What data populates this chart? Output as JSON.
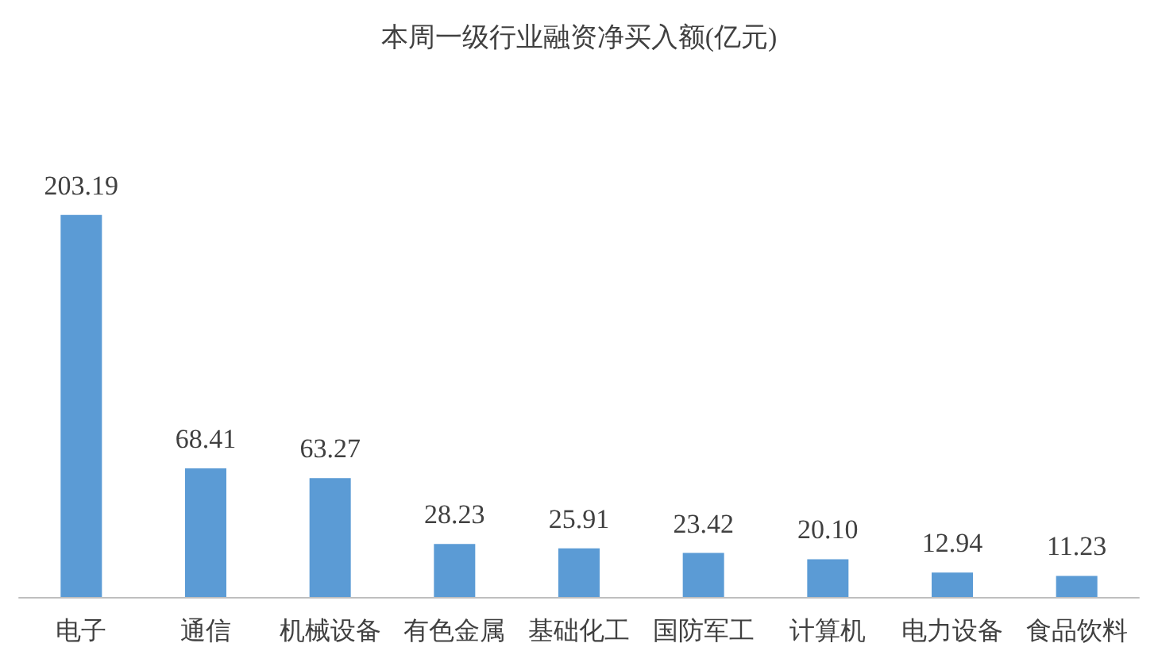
{
  "chart_data": {
    "type": "bar",
    "title": "本周一级行业融资净买入额(亿元)",
    "categories": [
      "电子",
      "通信",
      "机械设备",
      "有色金属",
      "基础化工",
      "国防军工",
      "计算机",
      "电力设备",
      "食品饮料"
    ],
    "values": [
      203.19,
      68.41,
      63.27,
      28.23,
      25.91,
      23.42,
      20.1,
      12.94,
      11.23
    ],
    "value_labels": [
      "203.19",
      "68.41",
      "63.27",
      "28.23",
      "25.91",
      "23.42",
      "20.10",
      "12.94",
      "11.23"
    ],
    "color": "#5b9bd5",
    "grid": false
  }
}
